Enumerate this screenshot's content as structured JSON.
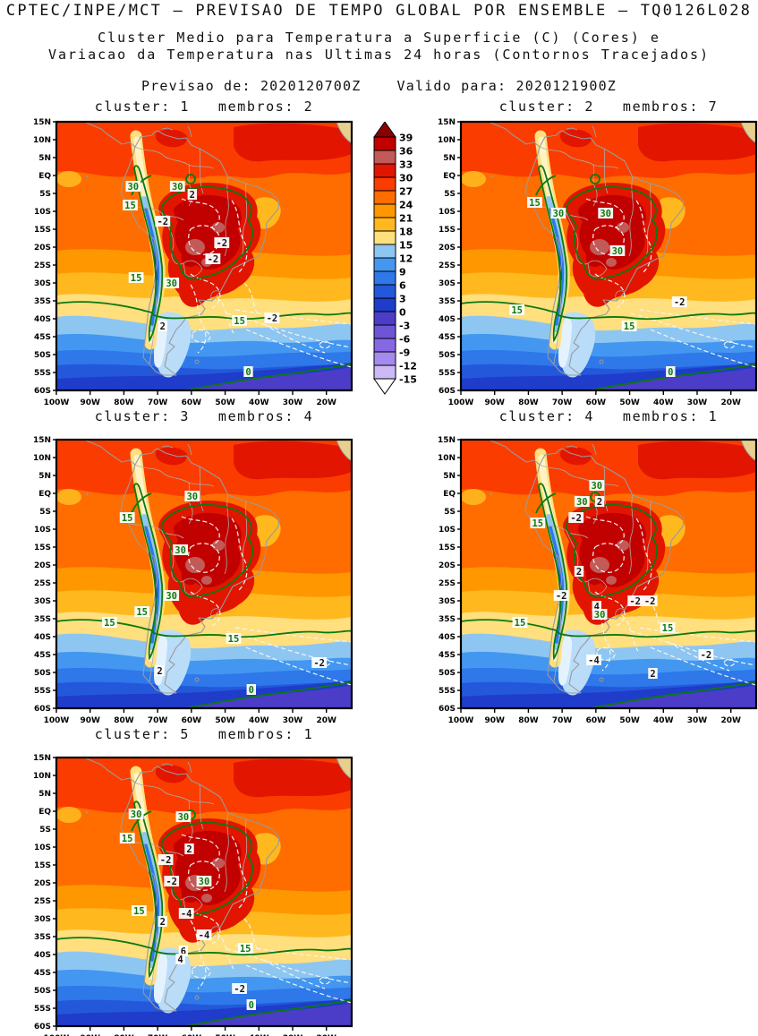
{
  "header": {
    "title": "CPTEC/INPE/MCT — PREVISAO DE TEMPO GLOBAL POR ENSEMBLE — TQ0126L028",
    "subtitle1": "Cluster Medio para Temperatura a Superficie (C) (Cores) e",
    "subtitle2": "Variacao da Temperatura nas Ultimas 24 horas (Contornos Tracejados)",
    "previsao": "Previsao de: 2020120700Z",
    "valido": "Valido para: 2020121900Z"
  },
  "chart_data": {
    "type": "heatmap",
    "title": "Cluster Medio para Temperatura a Superficie (C) (Cores) e Variacao da Temperatura nas Ultimas 24 horas (Contornos Tracejados)",
    "source": "CPTEC/INPE/MCT — PREVISAO DE TEMPO GLOBAL POR ENSEMBLE — TQ0126L028",
    "init_time": "2020120700Z",
    "valid_time": "2020121900Z",
    "region": {
      "lon_range_deg_w": [
        100,
        12.5
      ],
      "lat_range_deg": [
        15,
        -60
      ]
    },
    "axes": {
      "lat_labels": [
        "15N",
        "10N",
        "5N",
        "EQ",
        "5S",
        "10S",
        "15S",
        "20S",
        "25S",
        "30S",
        "35S",
        "40S",
        "45S",
        "50S",
        "55S",
        "60S"
      ],
      "lon_labels": [
        "100W",
        "90W",
        "80W",
        "70W",
        "60W",
        "50W",
        "40W",
        "30W",
        "20W"
      ]
    },
    "colorbar": {
      "units": "C",
      "levels": [
        39,
        36,
        33,
        30,
        27,
        24,
        21,
        18,
        15,
        12,
        9,
        6,
        3,
        0,
        -3,
        -6,
        -9,
        -12,
        -15
      ],
      "colors": [
        "#8b0000",
        "#c10000",
        "#c25a58",
        "#e21500",
        "#fa3c00",
        "#ff6c00",
        "#ff9800",
        "#ffb91e",
        "#ffdf7e",
        "#8ec6f2",
        "#4397f0",
        "#2e78ea",
        "#2458da",
        "#1f3cca",
        "#4c3dc8",
        "#6c56d6",
        "#8669e2",
        "#a58bee",
        "#ccb9f6",
        "#ffffff"
      ]
    },
    "contours": {
      "temperature_contours_c": [
        0,
        15,
        30
      ],
      "temperature_contour_color": "#0b7a0e",
      "variation_contours_c": [
        -4,
        -2,
        2,
        4,
        6
      ],
      "variation_contour_style": "dashed-white"
    },
    "panels": [
      {
        "cluster": 1,
        "membros": 2,
        "title": "cluster: 1   membros: 2",
        "labels": [
          {
            "t": "30",
            "c": "g",
            "x": 26,
            "y": 24
          },
          {
            "t": "30",
            "c": "g",
            "x": 41,
            "y": 24
          },
          {
            "t": "2",
            "c": "k",
            "x": 46,
            "y": 27
          },
          {
            "t": "15",
            "c": "g",
            "x": 25,
            "y": 31
          },
          {
            "t": "-2",
            "c": "k",
            "x": 36,
            "y": 37
          },
          {
            "t": "-2",
            "c": "k",
            "x": 56,
            "y": 45
          },
          {
            "t": "-2",
            "c": "k",
            "x": 53,
            "y": 51
          },
          {
            "t": "15",
            "c": "g",
            "x": 27,
            "y": 58
          },
          {
            "t": "30",
            "c": "g",
            "x": 39,
            "y": 60
          },
          {
            "t": "2",
            "c": "k",
            "x": 36,
            "y": 76
          },
          {
            "t": "15",
            "c": "g",
            "x": 62,
            "y": 74
          },
          {
            "t": "-2",
            "c": "k",
            "x": 73,
            "y": 73
          },
          {
            "t": "0",
            "c": "g",
            "x": 65,
            "y": 93
          }
        ]
      },
      {
        "cluster": 2,
        "membros": 7,
        "title": "cluster: 2   membros: 7",
        "labels": [
          {
            "t": "15",
            "c": "g",
            "x": 25,
            "y": 30
          },
          {
            "t": "30",
            "c": "g",
            "x": 33,
            "y": 34
          },
          {
            "t": "30",
            "c": "g",
            "x": 49,
            "y": 34
          },
          {
            "t": "30",
            "c": "g",
            "x": 53,
            "y": 48
          },
          {
            "t": "15",
            "c": "g",
            "x": 19,
            "y": 70
          },
          {
            "t": "-2",
            "c": "k",
            "x": 74,
            "y": 67
          },
          {
            "t": "15",
            "c": "g",
            "x": 57,
            "y": 76
          },
          {
            "t": "0",
            "c": "g",
            "x": 71,
            "y": 93
          }
        ]
      },
      {
        "cluster": 3,
        "membros": 4,
        "title": "cluster: 3   membros: 4",
        "labels": [
          {
            "t": "30",
            "c": "g",
            "x": 46,
            "y": 21
          },
          {
            "t": "15",
            "c": "g",
            "x": 24,
            "y": 29
          },
          {
            "t": "30",
            "c": "g",
            "x": 42,
            "y": 41
          },
          {
            "t": "30",
            "c": "g",
            "x": 39,
            "y": 58
          },
          {
            "t": "15",
            "c": "g",
            "x": 29,
            "y": 64
          },
          {
            "t": "15",
            "c": "g",
            "x": 18,
            "y": 68
          },
          {
            "t": "15",
            "c": "g",
            "x": 60,
            "y": 74
          },
          {
            "t": "2",
            "c": "k",
            "x": 35,
            "y": 86
          },
          {
            "t": "-2",
            "c": "k",
            "x": 89,
            "y": 83
          },
          {
            "t": "0",
            "c": "g",
            "x": 66,
            "y": 93
          }
        ]
      },
      {
        "cluster": 4,
        "membros": 1,
        "title": "cluster: 4   membros: 1",
        "labels": [
          {
            "t": "30",
            "c": "g",
            "x": 46,
            "y": 17
          },
          {
            "t": "30",
            "c": "g",
            "x": 41,
            "y": 23
          },
          {
            "t": "2",
            "c": "k",
            "x": 47,
            "y": 23
          },
          {
            "t": "-2",
            "c": "k",
            "x": 39,
            "y": 29
          },
          {
            "t": "15",
            "c": "g",
            "x": 26,
            "y": 31
          },
          {
            "t": "2",
            "c": "k",
            "x": 40,
            "y": 49
          },
          {
            "t": "-2",
            "c": "k",
            "x": 34,
            "y": 58
          },
          {
            "t": "-2",
            "c": "k",
            "x": 59,
            "y": 60
          },
          {
            "t": "-2",
            "c": "k",
            "x": 64,
            "y": 60
          },
          {
            "t": "4",
            "c": "k",
            "x": 46,
            "y": 62
          },
          {
            "t": "30",
            "c": "g",
            "x": 47,
            "y": 65
          },
          {
            "t": "15",
            "c": "g",
            "x": 20,
            "y": 68
          },
          {
            "t": "15",
            "c": "g",
            "x": 70,
            "y": 70
          },
          {
            "t": "-4",
            "c": "k",
            "x": 45,
            "y": 82
          },
          {
            "t": "-2",
            "c": "k",
            "x": 83,
            "y": 80
          },
          {
            "t": "2",
            "c": "k",
            "x": 65,
            "y": 87
          }
        ]
      },
      {
        "cluster": 5,
        "membros": 1,
        "title": "cluster: 5   membros: 1",
        "labels": [
          {
            "t": "30",
            "c": "g",
            "x": 27,
            "y": 21
          },
          {
            "t": "30",
            "c": "g",
            "x": 43,
            "y": 22
          },
          {
            "t": "15",
            "c": "g",
            "x": 24,
            "y": 30
          },
          {
            "t": "2",
            "c": "k",
            "x": 45,
            "y": 34
          },
          {
            "t": "-2",
            "c": "k",
            "x": 37,
            "y": 38
          },
          {
            "t": "-2",
            "c": "k",
            "x": 39,
            "y": 46
          },
          {
            "t": "30",
            "c": "g",
            "x": 50,
            "y": 46
          },
          {
            "t": "15",
            "c": "g",
            "x": 28,
            "y": 57
          },
          {
            "t": "-4",
            "c": "k",
            "x": 44,
            "y": 58
          },
          {
            "t": "2",
            "c": "k",
            "x": 36,
            "y": 61
          },
          {
            "t": "-4",
            "c": "k",
            "x": 50,
            "y": 66
          },
          {
            "t": "15",
            "c": "g",
            "x": 64,
            "y": 71
          },
          {
            "t": "6",
            "c": "k",
            "x": 43,
            "y": 72
          },
          {
            "t": "4",
            "c": "k",
            "x": 42,
            "y": 75
          },
          {
            "t": "-2",
            "c": "k",
            "x": 62,
            "y": 86
          },
          {
            "t": "0",
            "c": "g",
            "x": 66,
            "y": 92
          }
        ]
      }
    ]
  }
}
